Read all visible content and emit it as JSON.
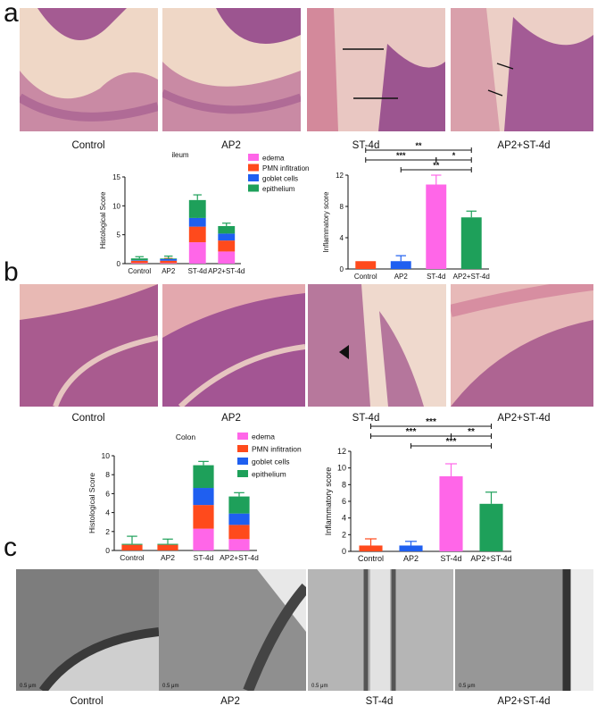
{
  "figure": {
    "panel_labels": [
      "a",
      "b",
      "c"
    ],
    "panel_a": {
      "captions": [
        "Control",
        "AP2",
        "ST-4d",
        "AP2+ST-4d"
      ],
      "image_tone": "#d89aa6"
    },
    "panel_b": {
      "captions": [
        "Control",
        "AP2",
        "ST-4d",
        "AP2+ST-4d"
      ],
      "image_tone": "#d48c9c"
    },
    "panel_c": {
      "captions": [
        "Control",
        "AP2",
        "ST-4d",
        "AP2+ST-4d"
      ],
      "scale_labels": [
        "0.5 μm",
        "0.5 μm",
        "0.5 μm",
        "0.5 μm"
      ],
      "image_tone": "#8c8c8c"
    }
  },
  "chart_data": [
    {
      "id": "ileum-histology",
      "type": "bar",
      "stacked": true,
      "title": "ileum",
      "ylabel": "Histological Score",
      "xlabel": "",
      "ylim": [
        0,
        15
      ],
      "yticks": [
        0,
        5,
        10,
        15
      ],
      "categories": [
        "Control",
        "AP2",
        "ST-4d",
        "AP2+ST-4d"
      ],
      "series": [
        {
          "name": "edema",
          "color": "#ff66e8",
          "values": [
            0.1,
            0.1,
            3.7,
            2.1
          ],
          "errors": [
            0.0,
            0.0,
            0.5,
            0.4
          ]
        },
        {
          "name": "PMN infitration",
          "color": "#ff4a1c",
          "values": [
            0.4,
            0.4,
            2.7,
            1.9
          ],
          "errors": [
            0.0,
            0.4,
            0.7,
            0.6
          ]
        },
        {
          "name": "goblet cells",
          "color": "#1f5ff0",
          "values": [
            0.1,
            0.3,
            1.5,
            1.2
          ],
          "errors": [
            0.0,
            0.0,
            0.5,
            0.4
          ]
        },
        {
          "name": "epithelium",
          "color": "#1ea05a",
          "values": [
            0.3,
            0.1,
            3.1,
            1.3
          ],
          "errors": [
            0.3,
            0.4,
            0.9,
            0.5
          ]
        }
      ],
      "legend_position": "top-right"
    },
    {
      "id": "ileum-inflammatory",
      "type": "bar",
      "title": "",
      "ylabel": "Inflammatory score",
      "xlabel": "",
      "ylim": [
        0,
        12
      ],
      "yticks": [
        0,
        4,
        8,
        12
      ],
      "categories": [
        "Control",
        "AP2",
        "ST-4d",
        "AP2+ST-4d"
      ],
      "values": [
        1.0,
        1.0,
        10.8,
        6.6
      ],
      "errors": [
        0.0,
        0.7,
        1.2,
        0.8
      ],
      "colors": [
        "#ff4a1c",
        "#1f5ff0",
        "#ff66e8",
        "#1ea05a"
      ],
      "significance": [
        {
          "from": 0,
          "to": 3,
          "label": "**"
        },
        {
          "from": 0,
          "to": 2,
          "label": "***"
        },
        {
          "from": 2,
          "to": 3,
          "label": "*"
        },
        {
          "from": 1,
          "to": 3,
          "label": "**"
        }
      ]
    },
    {
      "id": "colon-histology",
      "type": "bar",
      "stacked": true,
      "title": "Colon",
      "ylabel": "Histological Score",
      "xlabel": "",
      "ylim": [
        0,
        10
      ],
      "yticks": [
        0,
        2,
        4,
        6,
        8,
        10
      ],
      "categories": [
        "Control",
        "AP2",
        "ST-4d",
        "AP2+ST-4d"
      ],
      "series": [
        {
          "name": "edema",
          "color": "#ff66e8",
          "values": [
            0.0,
            0.0,
            2.3,
            1.2
          ],
          "errors": [
            0.0,
            0.0,
            0.3,
            0.3
          ]
        },
        {
          "name": "PMN infitration",
          "color": "#ff4a1c",
          "values": [
            0.6,
            0.6,
            2.5,
            1.5
          ],
          "errors": [
            0.0,
            0.0,
            1.0,
            0.6
          ]
        },
        {
          "name": "goblet cells",
          "color": "#1f5ff0",
          "values": [
            0.0,
            0.0,
            1.8,
            1.2
          ],
          "errors": [
            0.0,
            0.0,
            0.5,
            0.5
          ]
        },
        {
          "name": "epithelium",
          "color": "#1ea05a",
          "values": [
            0.1,
            0.1,
            2.4,
            1.8
          ],
          "errors": [
            0.8,
            0.5,
            0.4,
            0.4
          ]
        }
      ],
      "legend_position": "top-right"
    },
    {
      "id": "colon-inflammatory",
      "type": "bar",
      "title": "",
      "ylabel": "Inflammatory score",
      "xlabel": "",
      "ylim": [
        0,
        12
      ],
      "yticks": [
        0,
        2,
        4,
        6,
        8,
        10,
        12
      ],
      "categories": [
        "Control",
        "AP2",
        "ST-4d",
        "AP2+ST-4d"
      ],
      "values": [
        0.7,
        0.7,
        9.0,
        5.7
      ],
      "errors": [
        0.8,
        0.5,
        1.5,
        1.4
      ],
      "colors": [
        "#ff4a1c",
        "#1f5ff0",
        "#ff66e8",
        "#1ea05a"
      ],
      "significance": [
        {
          "from": 0,
          "to": 3,
          "label": "***"
        },
        {
          "from": 0,
          "to": 2,
          "label": "***"
        },
        {
          "from": 2,
          "to": 3,
          "label": "**"
        },
        {
          "from": 1,
          "to": 3,
          "label": "***"
        }
      ]
    }
  ]
}
